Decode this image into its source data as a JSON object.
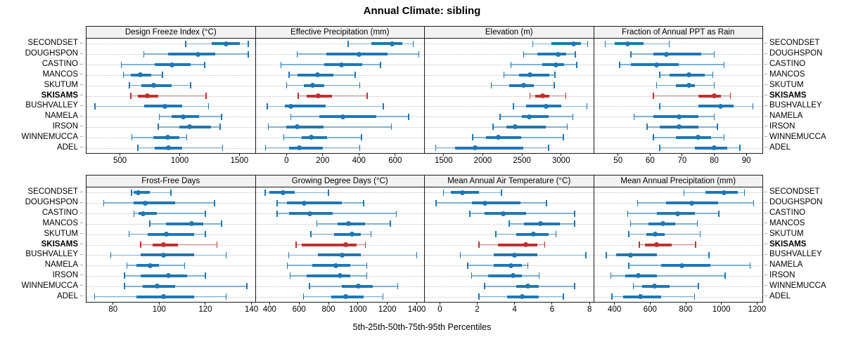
{
  "title": "Annual Climate: sibling",
  "caption": "5th-25th-50th-75th-95th Percentiles",
  "highlight_site": "SKISAMS",
  "colors": {
    "series": "#1f77b4",
    "series_light": "#7fb0d4",
    "highlight": "#bf3030",
    "highlight_light": "#d88e86",
    "header_bg": "#f2f2f2",
    "grid": "#c2c2c2",
    "border": "#1a1a1a"
  },
  "chart_data": {
    "type": "dotplot-percentiles",
    "percentiles": [
      5,
      25,
      50,
      75,
      95
    ],
    "rows": [
      "SECONDSET",
      "DOUGHSPON",
      "CASTINO",
      "MANCOS",
      "SKUTUM",
      "SKISAMS",
      "BUSHVALLEY",
      "NAMELA",
      "IRSON",
      "WINNEMUCCA",
      "ADEL"
    ],
    "panels": [
      {
        "title": "Design Freeze Index (°C)",
        "xlim": [
          220,
          1630
        ],
        "ticks": [
          500,
          1000,
          1500
        ],
        "values": [
          [
            1050,
            1265,
            1390,
            1505,
            1575
          ],
          [
            700,
            900,
            1155,
            1300,
            1575
          ],
          [
            510,
            790,
            935,
            1090,
            1210
          ],
          [
            530,
            590,
            670,
            760,
            855
          ],
          [
            580,
            680,
            785,
            935,
            1090
          ],
          [
            590,
            650,
            730,
            820,
            1220
          ],
          [
            290,
            700,
            875,
            1020,
            1240
          ],
          [
            830,
            930,
            1030,
            1160,
            1350
          ],
          [
            820,
            1000,
            1085,
            1260,
            1340
          ],
          [
            600,
            780,
            900,
            1000,
            1060
          ],
          [
            650,
            790,
            905,
            1020,
            1360
          ]
        ]
      },
      {
        "title": "Effective Precipitation (mm)",
        "xlim": [
          -170,
          760
        ],
        "ticks": [
          0,
          200,
          400,
          600
        ],
        "values": [
          [
            340,
            470,
            585,
            640,
            700
          ],
          [
            60,
            220,
            400,
            560,
            730
          ],
          [
            -30,
            210,
            305,
            420,
            520
          ],
          [
            15,
            60,
            170,
            260,
            380
          ],
          [
            0,
            95,
            145,
            210,
            405
          ],
          [
            65,
            110,
            175,
            250,
            445
          ],
          [
            -105,
            -10,
            25,
            215,
            535
          ],
          [
            25,
            180,
            310,
            495,
            675
          ],
          [
            -100,
            0,
            60,
            205,
            580
          ],
          [
            -15,
            85,
            135,
            225,
            415
          ],
          [
            -115,
            15,
            70,
            200,
            405
          ]
        ]
      },
      {
        "title": "Elevation (m)",
        "xlim": [
          1260,
          3410
        ],
        "ticks": [
          1500,
          2000,
          2500,
          3000
        ],
        "values": [
          [
            2640,
            2880,
            3160,
            3250,
            3340
          ],
          [
            2520,
            2700,
            2960,
            3060,
            3180
          ],
          [
            2360,
            2760,
            2930,
            3040,
            3200
          ],
          [
            2270,
            2460,
            2600,
            2850,
            2920
          ],
          [
            2110,
            2340,
            2520,
            2650,
            2910
          ],
          [
            2600,
            2670,
            2760,
            2850,
            3060
          ],
          [
            2390,
            2550,
            2810,
            3000,
            3330
          ],
          [
            2220,
            2500,
            2590,
            2840,
            3150
          ],
          [
            2130,
            2300,
            2410,
            2800,
            3080
          ],
          [
            1870,
            2040,
            2200,
            2490,
            3030
          ],
          [
            1400,
            1650,
            1900,
            2520,
            2840
          ]
        ]
      },
      {
        "title": "Fraction of Annual PPT as Rain",
        "xlim": [
          42.5,
          95
        ],
        "ticks": [
          50,
          60,
          70,
          80,
          90
        ],
        "values": [
          [
            46,
            49,
            53,
            58,
            66
          ],
          [
            54,
            61,
            65,
            76,
            80
          ],
          [
            50.5,
            54,
            62,
            69,
            83
          ],
          [
            63,
            66,
            72,
            77,
            79.5
          ],
          [
            62,
            68,
            72,
            74,
            80
          ],
          [
            61,
            75,
            80,
            82,
            85
          ],
          [
            63,
            75,
            82,
            86,
            92
          ],
          [
            55,
            61,
            69,
            75,
            80
          ],
          [
            59,
            63,
            69,
            75,
            81
          ],
          [
            61,
            68,
            75,
            79,
            83
          ],
          [
            63,
            74,
            80,
            84,
            88
          ]
        ]
      },
      {
        "title": "Frost-Free Days",
        "xlim": [
          68.5,
          141.5
        ],
        "ticks": [
          80,
          100,
          120,
          140
        ],
        "values": [
          [
            88,
            89,
            91,
            96,
            105
          ],
          [
            76,
            89,
            94,
            107,
            124
          ],
          [
            89,
            91,
            93,
            99,
            120
          ],
          [
            96,
            103,
            114,
            119,
            127
          ],
          [
            87,
            95,
            103,
            115,
            120
          ],
          [
            92,
            97,
            102,
            108,
            125
          ],
          [
            79,
            92,
            102,
            115,
            129
          ],
          [
            86,
            90,
            96,
            100,
            111
          ],
          [
            85,
            92,
            104,
            112,
            120
          ],
          [
            85,
            93,
            99,
            107,
            138
          ],
          [
            72,
            90,
            102,
            115,
            129
          ]
        ]
      },
      {
        "title": "Growing Degree Days (°C)",
        "xlim": [
          305,
          1450
        ],
        "ticks": [
          400,
          600,
          800,
          1000,
          1200,
          1400
        ],
        "values": [
          [
            370,
            400,
            490,
            570,
            800
          ],
          [
            450,
            520,
            635,
            890,
            1040
          ],
          [
            450,
            530,
            675,
            830,
            1260
          ],
          [
            720,
            860,
            935,
            1050,
            1220
          ],
          [
            680,
            840,
            960,
            1020,
            1090
          ],
          [
            580,
            620,
            915,
            990,
            1050
          ],
          [
            530,
            730,
            895,
            1020,
            1400
          ],
          [
            520,
            690,
            850,
            950,
            1060
          ],
          [
            540,
            650,
            880,
            950,
            1060
          ],
          [
            670,
            890,
            1005,
            1100,
            1270
          ],
          [
            630,
            820,
            915,
            1040,
            1170
          ]
        ]
      },
      {
        "title": "Mean Annual Air Temperature (°C)",
        "xlim": [
          -0.8,
          8.2
        ],
        "ticks": [
          0,
          2,
          4,
          6,
          8
        ],
        "values": [
          [
            0.2,
            0.6,
            1.2,
            2.1,
            3.3
          ],
          [
            -0.2,
            1.7,
            2.4,
            4.3,
            5.7
          ],
          [
            1.6,
            2.4,
            3.4,
            4.6,
            7.2
          ],
          [
            3.7,
            4.5,
            5.4,
            6.4,
            7.2
          ],
          [
            3.0,
            4.1,
            5.0,
            5.8,
            6.2
          ],
          [
            2.1,
            3.1,
            4.6,
            5.2,
            5.6
          ],
          [
            1.1,
            2.9,
            4.0,
            5.2,
            7.8
          ],
          [
            1.5,
            2.9,
            3.8,
            4.4,
            4.7
          ],
          [
            1.7,
            2.6,
            3.9,
            4.4,
            5.3
          ],
          [
            2.4,
            4.1,
            4.7,
            5.3,
            7.2
          ],
          [
            2.1,
            3.6,
            4.4,
            5.3,
            6.6
          ]
        ]
      },
      {
        "title": "Mean Annual Precipitation (mm)",
        "xlim": [
          285,
          1230
        ],
        "ticks": [
          400,
          600,
          800,
          1000,
          1200
        ],
        "values": [
          [
            790,
            910,
            1015,
            1090,
            1130
          ],
          [
            530,
            690,
            835,
            980,
            1180
          ],
          [
            475,
            640,
            755,
            850,
            985
          ],
          [
            490,
            590,
            670,
            740,
            865
          ],
          [
            480,
            580,
            630,
            680,
            880
          ],
          [
            540,
            570,
            635,
            720,
            855
          ],
          [
            355,
            410,
            490,
            640,
            930
          ],
          [
            480,
            660,
            780,
            940,
            1160
          ],
          [
            380,
            460,
            535,
            640,
            1020
          ],
          [
            505,
            555,
            625,
            710,
            870
          ],
          [
            385,
            450,
            545,
            660,
            850
          ]
        ]
      }
    ]
  }
}
